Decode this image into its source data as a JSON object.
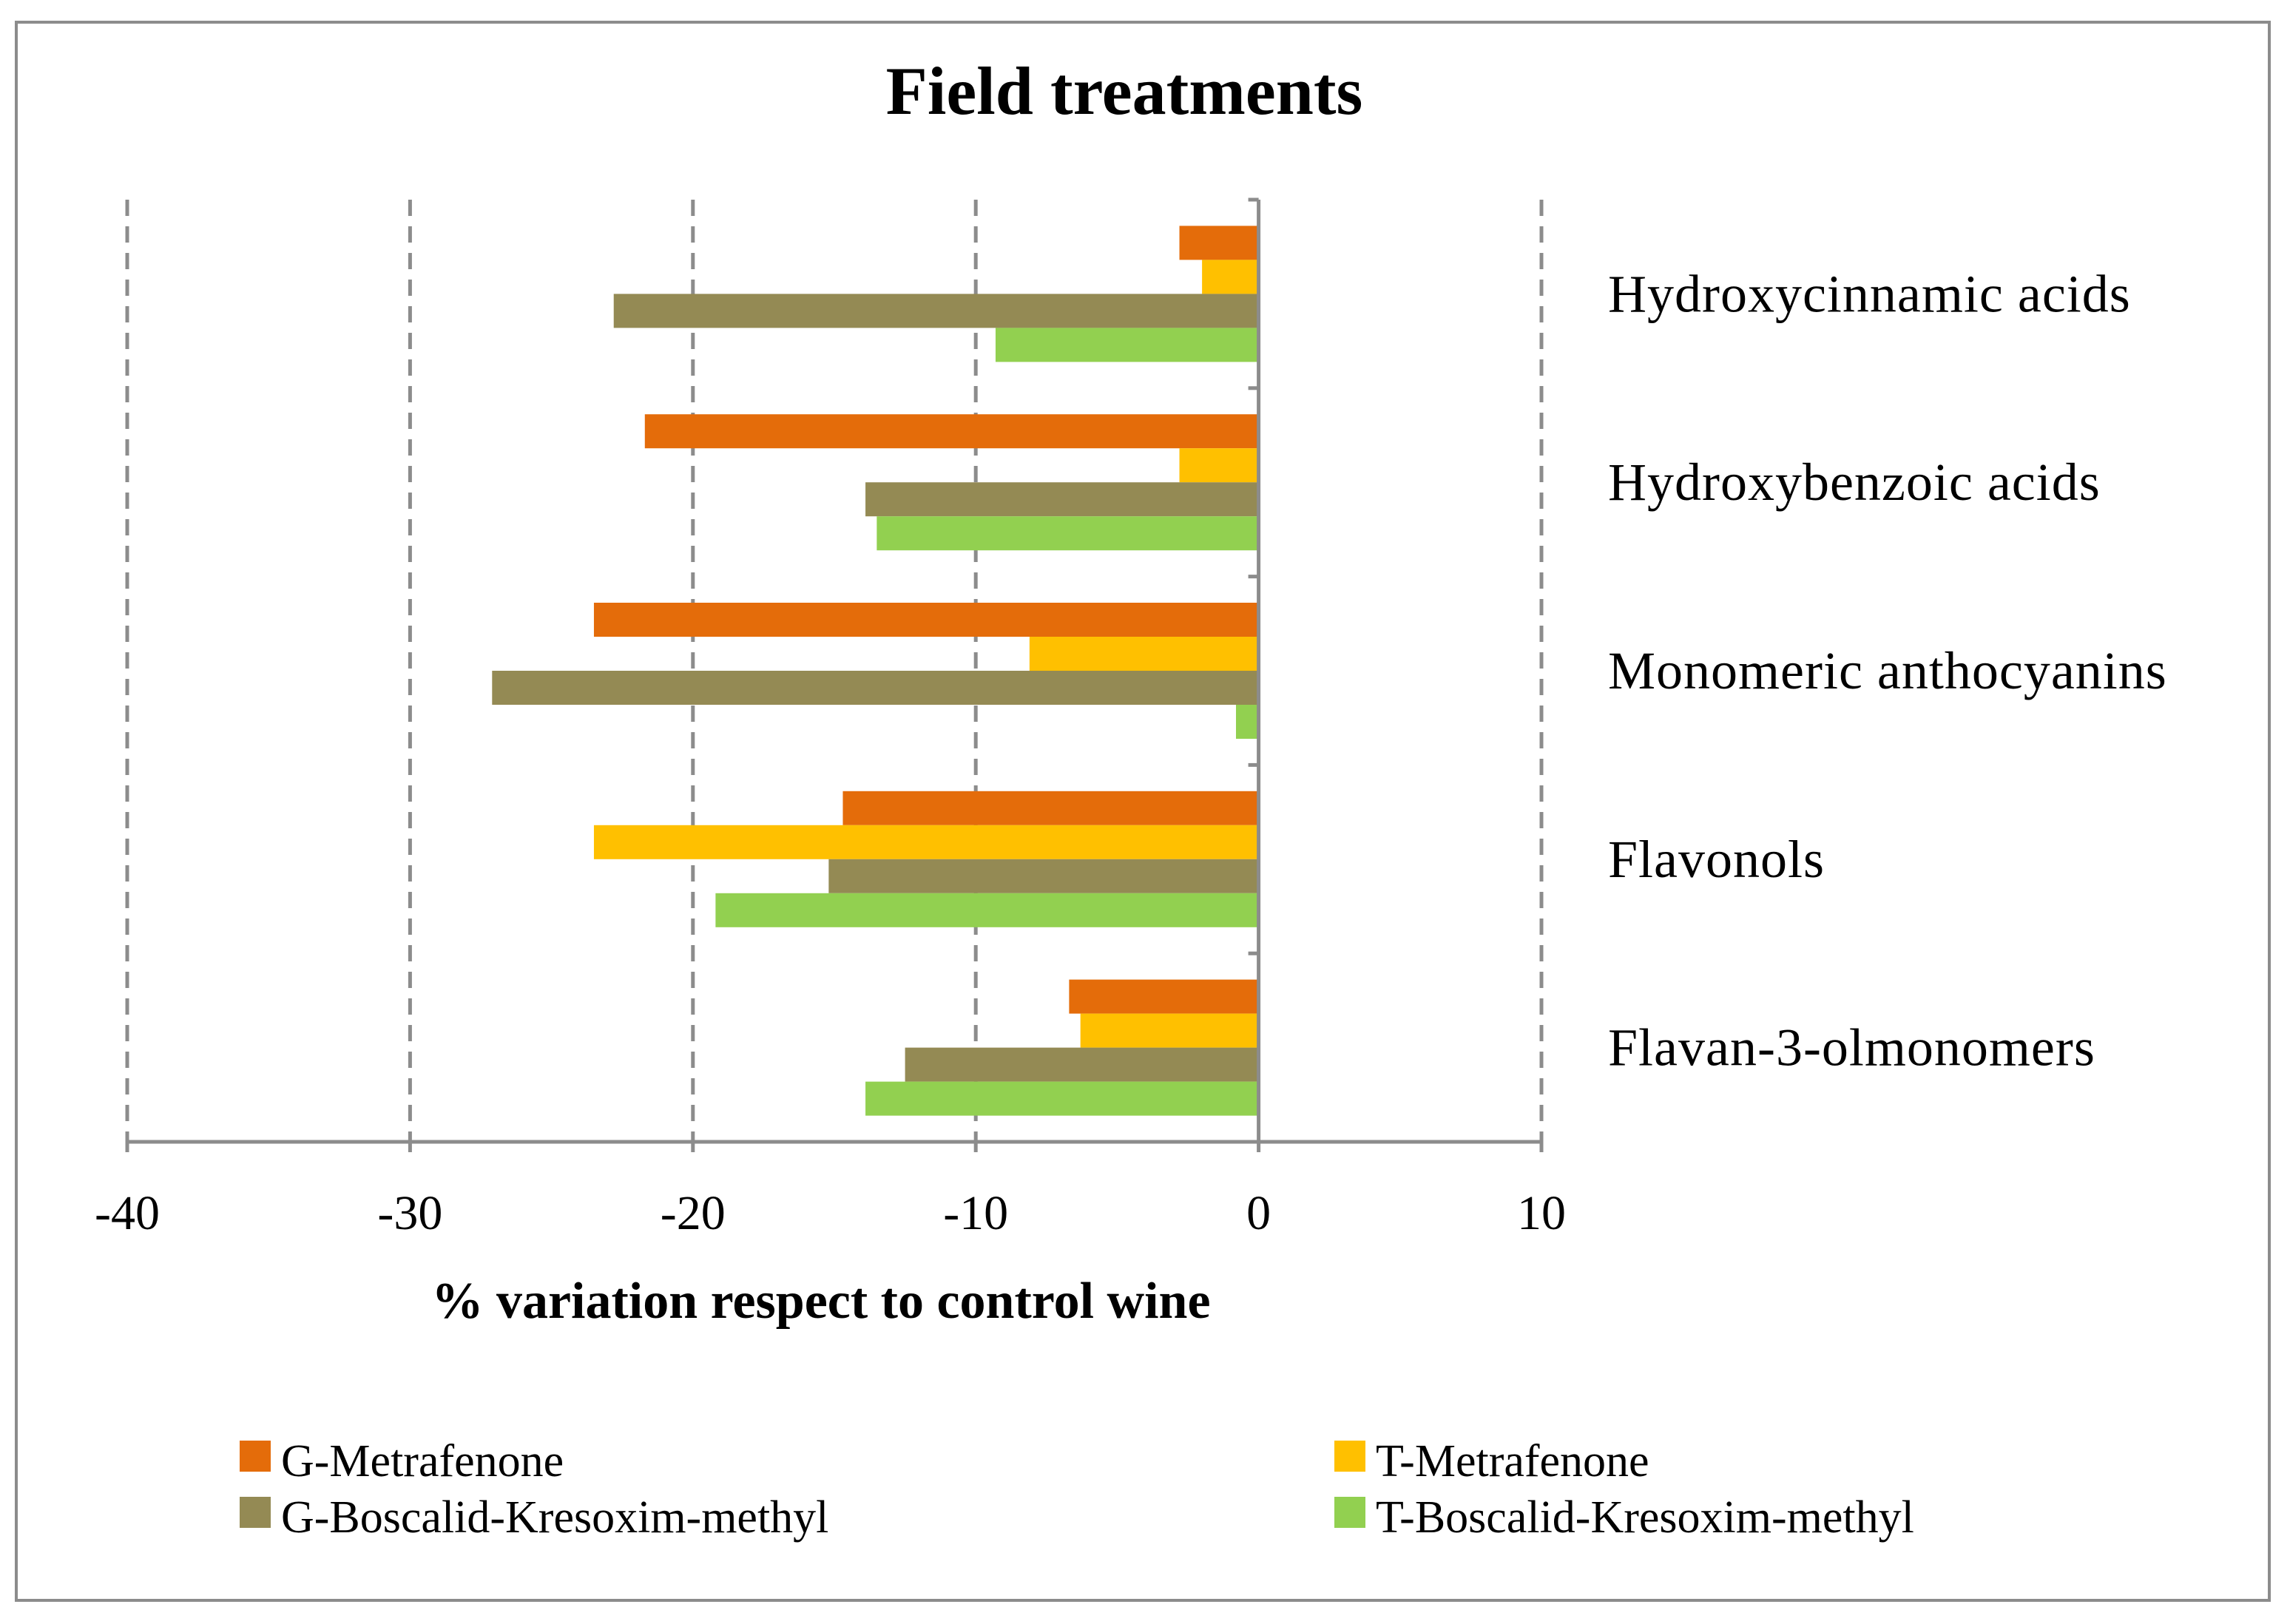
{
  "chart_data": {
    "type": "bar",
    "orientation": "horizontal",
    "title": "Field treatments",
    "xlabel": "% variation respect to control wine",
    "ylabel": "",
    "xlim": [
      -40,
      10
    ],
    "xticks": [
      -40,
      -30,
      -20,
      -10,
      0,
      10
    ],
    "grid": "dashed vertical",
    "categories": [
      "Hydroxycinnamic acids",
      "Hydroxybenzoic acids",
      "Monomeric anthocyanins",
      "Flavonols",
      "Flavan-3-olmonomers"
    ],
    "series": [
      {
        "name": "G-Metrafenone",
        "color": "#E46C0A",
        "values": [
          -2.8,
          -21.7,
          -23.5,
          -14.7,
          -6.7
        ]
      },
      {
        "name": "T-Metrafenone",
        "color": "#FFC000",
        "values": [
          -2.0,
          -2.8,
          -8.1,
          -23.5,
          -6.3
        ]
      },
      {
        "name": "G-Boscalid-Kresoxim-methyl",
        "color": "#948A54",
        "values": [
          -22.8,
          -13.9,
          -27.1,
          -15.2,
          -12.5
        ]
      },
      {
        "name": "T-Boscalid-Kresoxim-methyl",
        "color": "#92D050",
        "values": [
          -9.3,
          -13.5,
          -0.8,
          -19.2,
          -13.9
        ]
      }
    ],
    "legend_position": "bottom"
  },
  "colors": {
    "axis": "#8c8c8c",
    "grid": "#8c8c8c",
    "frame": "#8c8c8c"
  }
}
